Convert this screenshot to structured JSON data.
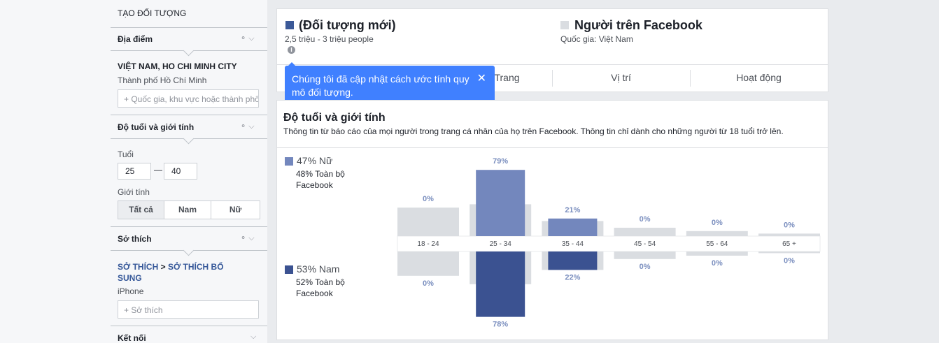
{
  "sidebar": {
    "title": "TẠO ĐỐI TƯỢNG",
    "location": {
      "heading": "Địa điểm",
      "selected": "VIỆT NAM, HO CHI MINH CITY",
      "sub": "Thành phố Hồ Chí Minh",
      "placeholder": "Quốc gia, khu vực hoặc thành phố"
    },
    "age_gender": {
      "heading": "Độ tuổi và giới tính",
      "age_label": "Tuổi",
      "age_from": "25",
      "age_to": "40",
      "gender_label": "Giới tính",
      "gender_options": [
        "Tất cả",
        "Nam",
        "Nữ"
      ]
    },
    "interests": {
      "heading": "Sở thích",
      "path": "SỞ THÍCH",
      "separator": ">",
      "path2": "SỞ THÍCH BỔ SUNG",
      "item": "iPhone",
      "placeholder": "Sở thích"
    },
    "connections": {
      "heading": "Kết nối"
    }
  },
  "header": {
    "audience": {
      "title": "(Đối tượng mới)",
      "size": "2,5 triệu - 3 triệu people"
    },
    "compare": {
      "title": "Người trên Facebook",
      "country": "Quốc gia: Việt Nam"
    }
  },
  "tooltip": "Chúng tôi đã cập nhật cách ước tính quy mô đối tượng.",
  "tabs": [
    "Trang",
    "Vị trí",
    "Hoạt động"
  ],
  "section": {
    "title": "Độ tuổi và giới tính",
    "description": "Thông tin từ báo cáo của mọi người trong trang cá nhân của họ trên Facebook. Thông tin chỉ dành cho những người từ 18 tuổi trở lên."
  },
  "legend": {
    "female": {
      "share": "47% Nữ",
      "facebook": "48% Toàn bộ Facebook"
    },
    "male": {
      "share": "53% Nam",
      "facebook": "52% Toàn bộ Facebook"
    }
  },
  "chart": {
    "type": "bar",
    "categories": [
      "18 - 24",
      "25 - 34",
      "35 - 44",
      "45 - 54",
      "55 - 64",
      "65 +"
    ],
    "female": {
      "color": "#7387bd",
      "values": [
        0,
        79,
        21,
        0,
        0,
        0
      ],
      "value_labels": [
        "0%",
        "79%",
        "21%",
        "0%",
        "0%",
        "0%"
      ],
      "facebook_color": "#dadde1",
      "facebook_values": [
        34,
        38,
        18,
        10,
        6,
        3
      ]
    },
    "male": {
      "color": "#3b5291",
      "values": [
        0,
        78,
        22,
        0,
        0,
        0
      ],
      "value_labels": [
        "0%",
        "78%",
        "22%",
        "0%",
        "0%",
        "0%"
      ],
      "facebook_color": "#dadde1",
      "facebook_values": [
        29,
        39,
        22,
        9,
        5,
        2
      ]
    }
  }
}
